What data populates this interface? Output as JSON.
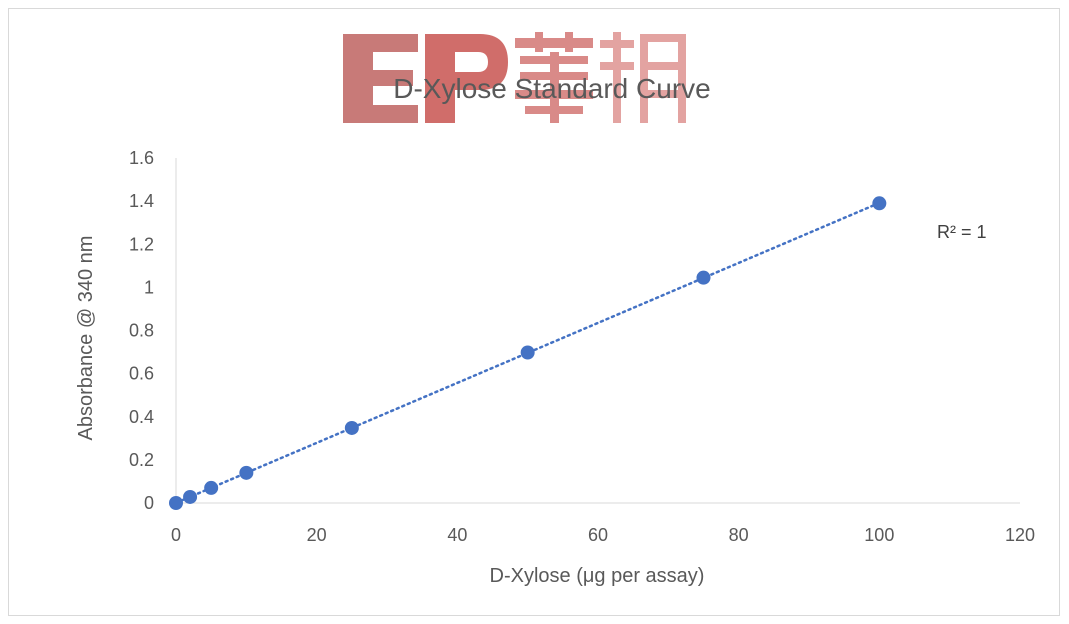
{
  "chart_data": {
    "type": "scatter",
    "title": "D-Xylose Standard Curve",
    "xlabel": "D-Xylose (μg per assay)",
    "ylabel": "Absorbance @ 340 nm",
    "xlim": [
      0,
      120
    ],
    "ylim": [
      0,
      1.6
    ],
    "x_ticks": [
      0,
      20,
      40,
      60,
      80,
      100,
      120
    ],
    "y_ticks": [
      0,
      0.2,
      0.4,
      0.6,
      0.8,
      1,
      1.2,
      1.4,
      1.6
    ],
    "points": [
      {
        "x": 0,
        "y": 0
      },
      {
        "x": 2,
        "y": 0.028
      },
      {
        "x": 5,
        "y": 0.07
      },
      {
        "x": 10,
        "y": 0.14
      },
      {
        "x": 25,
        "y": 0.348
      },
      {
        "x": 50,
        "y": 0.698
      },
      {
        "x": 75,
        "y": 1.045
      },
      {
        "x": 100,
        "y": 1.39
      }
    ],
    "trendline": {
      "type": "linear",
      "style": "dotted",
      "x_range": [
        0,
        100
      ],
      "r_squared_label": "R² = 1"
    },
    "grid": false,
    "legend": "none",
    "colors": {
      "series": "#4472c4",
      "axis": "#d9d9d9",
      "text": "#595959"
    }
  },
  "watermark": {
    "text": "EP 華粒",
    "colors": [
      "#c0504d",
      "#d99694"
    ]
  }
}
